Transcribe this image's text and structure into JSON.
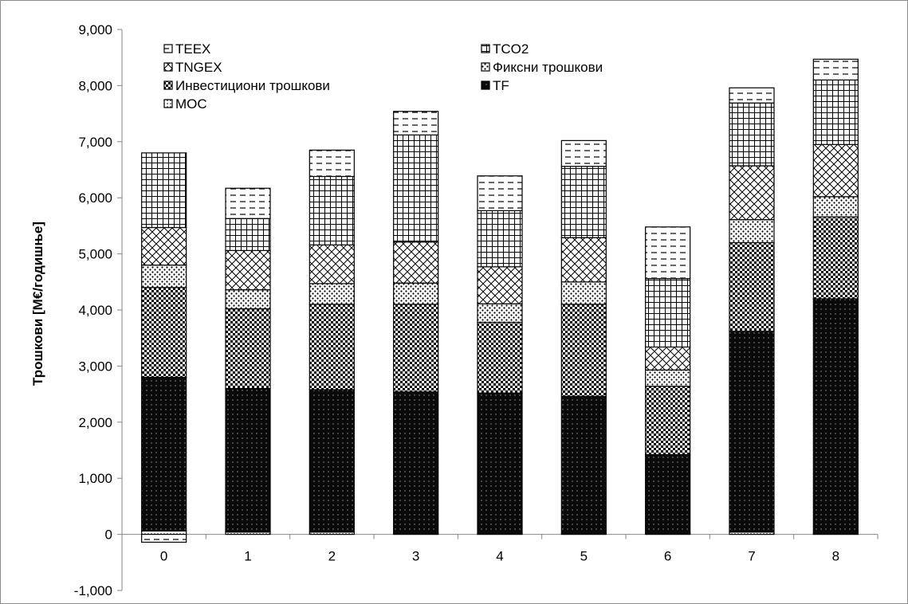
{
  "chart_data": {
    "type": "bar",
    "stacked": true,
    "title": "",
    "xlabel": "",
    "ylabel": "Трошкови  [M€/годишње]",
    "ylim": [
      -1000,
      9000
    ],
    "yticks": [
      -1000,
      0,
      1000,
      2000,
      3000,
      4000,
      5000,
      6000,
      7000,
      8000,
      9000
    ],
    "ytick_labels": [
      "-1,000",
      "0",
      "1,000",
      "2,000",
      "3,000",
      "4,000",
      "5,000",
      "6,000",
      "7,000",
      "8,000",
      "9,000"
    ],
    "grid": false,
    "legend_position": "top-left inside plot, two columns",
    "categories": [
      "0",
      "1",
      "2",
      "3",
      "4",
      "5",
      "6",
      "7",
      "8"
    ],
    "series": [
      {
        "name": "MOC",
        "pattern": "fine-dots",
        "values": [
          60,
          40,
          40,
          20,
          20,
          20,
          20,
          40,
          20
        ]
      },
      {
        "name": "TF",
        "pattern": "black-dotted",
        "values": [
          2740,
          2560,
          2540,
          2520,
          2500,
          2440,
          1400,
          3580,
          4180
        ]
      },
      {
        "name": "Инвестициони трошкови",
        "pattern": "checker",
        "values": [
          1600,
          1420,
          1520,
          1560,
          1260,
          1640,
          1220,
          1580,
          1460
        ]
      },
      {
        "name": "Фиксни трошкови",
        "pattern": "dots",
        "values": [
          400,
          340,
          370,
          380,
          330,
          400,
          290,
          410,
          360
        ]
      },
      {
        "name": "TNGEX",
        "pattern": "diagonal-crosshatch",
        "values": [
          670,
          700,
          690,
          730,
          660,
          790,
          410,
          960,
          930
        ]
      },
      {
        "name": "TCO2",
        "pattern": "grid",
        "values": [
          1330,
          570,
          1220,
          1910,
          1000,
          1270,
          1220,
          1120,
          1150
        ]
      },
      {
        "name": "TEEX",
        "pattern": "dashes",
        "values": [
          -140,
          540,
          470,
          420,
          620,
          460,
          920,
          270,
          370
        ]
      }
    ]
  }
}
